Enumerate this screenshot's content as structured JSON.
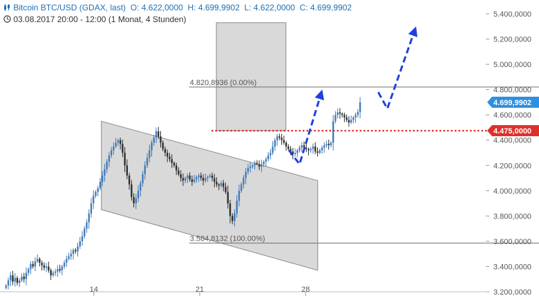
{
  "header": {
    "symbol": "Bitcoin BTC/USD (GDAX, last)",
    "open_label": "O:",
    "open": "4.622,0000",
    "high_label": "H:",
    "high": "4.699,9902",
    "low_label": "L:",
    "low": "4.622,0000",
    "close_label": "C:",
    "close": "4.699,9902",
    "timeframe": "03.08.2017 20:00 - 12:00",
    "interval": "(1 Monat, 4 Stunden)"
  },
  "colors": {
    "candle_up": "#3d78b8",
    "candle_down": "#2b2b2b",
    "resistance": "#e0302a",
    "arrow": "#1f3fe0",
    "price_tag": "#2d8fe0",
    "channel_fill": "#d9d9d9",
    "rect_fill": "#d9d9d9"
  },
  "icons": {
    "chart_icon": "candlestick-icon",
    "time_icon": "clock-icon"
  },
  "chart_data": {
    "type": "candlestick",
    "ylim": [
      3200,
      5400
    ],
    "y_ticks": [
      3200,
      3400,
      3600,
      3800,
      4000,
      4200,
      4400,
      4600,
      4800,
      5000,
      5200,
      5400
    ],
    "y_tick_labels": [
      "3.200,0000",
      "3.400,0000",
      "3.600,0000",
      "3.800,0000",
      "4.000,0000",
      "4.200,0000",
      "4.400,0000",
      "4.600,0000",
      "4.800,0000",
      "5.000,0000",
      "5.200,0000",
      "5.400,0000"
    ],
    "x_ticks": [
      {
        "day": 14,
        "label": "14"
      },
      {
        "day": 21,
        "label": "21"
      },
      {
        "day": 28,
        "label": "28"
      }
    ],
    "xlim_days": [
      7.8,
      40.0
    ],
    "fib_levels": [
      {
        "value": 4820.8936,
        "label": "4.820,8936 (0.00%)"
      },
      {
        "value": 3584.8132,
        "label": "3.584,8132 (100.00%)"
      }
    ],
    "price_tags": [
      {
        "value": 4699.9902,
        "label": "4.699,9902",
        "color": "#2d8fe0"
      },
      {
        "value": 4475.0,
        "label": "4.475,0000",
        "color": "#e0302a"
      }
    ],
    "resistance_level": 4475,
    "channel": {
      "upper": [
        {
          "day": 14.5,
          "value": 4550
        },
        {
          "day": 28.8,
          "value": 4080
        }
      ],
      "lower": [
        {
          "day": 14.5,
          "value": 3850
        },
        {
          "day": 28.8,
          "value": 3370
        }
      ]
    },
    "box": {
      "day_start": 22.1,
      "day_end": 26.7,
      "value_low": 4475,
      "value_high": 5330
    },
    "projection_arrows": [
      [
        {
          "day": 26.9,
          "value": 4320
        },
        {
          "day": 27.6,
          "value": 4210
        },
        {
          "day": 29.1,
          "value": 4800
        }
      ],
      [
        {
          "day": 32.8,
          "value": 4780
        },
        {
          "day": 33.4,
          "value": 4650
        },
        {
          "day": 35.3,
          "value": 5300
        }
      ]
    ],
    "closes": [
      3250,
      3290,
      3330,
      3280,
      3310,
      3270,
      3290,
      3320,
      3300,
      3350,
      3380,
      3420,
      3400,
      3440,
      3460,
      3430,
      3410,
      3390,
      3400,
      3370,
      3330,
      3350,
      3360,
      3380,
      3370,
      3400,
      3430,
      3460,
      3480,
      3500,
      3530,
      3520,
      3560,
      3600,
      3640,
      3700,
      3750,
      3820,
      3900,
      3960,
      3990,
      4020,
      4070,
      4120,
      4170,
      4230,
      4280,
      4320,
      4350,
      4380,
      4400,
      4370,
      4300,
      4200,
      4120,
      4050,
      3950,
      3900,
      3940,
      4000,
      4060,
      4130,
      4200,
      4260,
      4320,
      4380,
      4420,
      4470,
      4430,
      4380,
      4330,
      4300,
      4270,
      4250,
      4220,
      4200,
      4160,
      4130,
      4100,
      4080,
      4100,
      4120,
      4090,
      4070,
      4090,
      4110,
      4120,
      4100,
      4080,
      4100,
      4110,
      4120,
      4100,
      4070,
      4050,
      4040,
      4060,
      4030,
      3990,
      3900,
      3800,
      3760,
      3820,
      3920,
      4000,
      4050,
      4100,
      4150,
      4180,
      4190,
      4200,
      4220,
      4210,
      4190,
      4210,
      4230,
      4250,
      4280,
      4300,
      4350,
      4400,
      4430,
      4420,
      4400,
      4380,
      4350,
      4330,
      4310,
      4290,
      4300,
      4320,
      4340,
      4360,
      4340,
      4330,
      4320,
      4330,
      4350,
      4310,
      4300,
      4320,
      4340,
      4360,
      4370,
      4360,
      4380,
      4550,
      4600,
      4620,
      4610,
      4600,
      4580,
      4560,
      4540,
      4560,
      4580,
      4600,
      4622,
      4700
    ]
  }
}
